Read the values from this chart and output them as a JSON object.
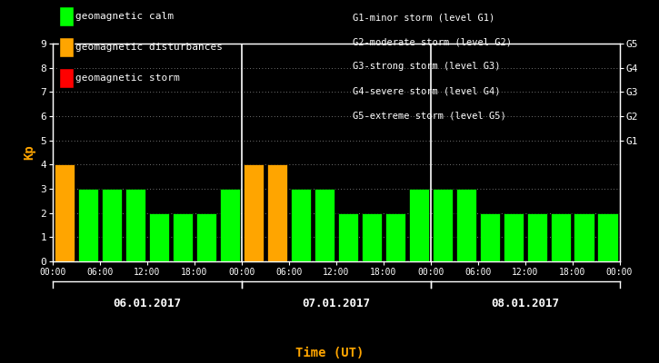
{
  "bg_color": "#000000",
  "bar_values": [
    4,
    3,
    3,
    3,
    2,
    2,
    2,
    3,
    4,
    4,
    3,
    3,
    2,
    2,
    2,
    3,
    3,
    3,
    2,
    2,
    2,
    2,
    2,
    2
  ],
  "bar_colors": [
    "#FFA500",
    "#00FF00",
    "#00FF00",
    "#00FF00",
    "#00FF00",
    "#00FF00",
    "#00FF00",
    "#00FF00",
    "#FFA500",
    "#FFA500",
    "#00FF00",
    "#00FF00",
    "#00FF00",
    "#00FF00",
    "#00FF00",
    "#00FF00",
    "#00FF00",
    "#00FF00",
    "#00FF00",
    "#00FF00",
    "#00FF00",
    "#00FF00",
    "#00FF00",
    "#00FF00"
  ],
  "ylim": [
    0,
    9
  ],
  "yticks": [
    0,
    1,
    2,
    3,
    4,
    5,
    6,
    7,
    8,
    9
  ],
  "ylabel": "Kp",
  "ylabel_color": "#FFA500",
  "xlabel": "Time (UT)",
  "xlabel_color": "#FFA500",
  "tick_color": "#FFFFFF",
  "axis_color": "#FFFFFF",
  "grid_color": "#FFFFFF",
  "day_labels": [
    "06.01.2017",
    "07.01.2017",
    "08.01.2017"
  ],
  "day_label_color": "#FFFFFF",
  "right_ytick_labels": [
    "G1",
    "G2",
    "G3",
    "G4",
    "G5"
  ],
  "right_ytick_positions": [
    5,
    6,
    7,
    8,
    9
  ],
  "right_tick_color": "#FFFFFF",
  "legend_items": [
    {
      "label": "geomagnetic calm",
      "color": "#00FF00"
    },
    {
      "label": "geomagnetic disturbances",
      "color": "#FFA500"
    },
    {
      "label": "geomagnetic storm",
      "color": "#FF0000"
    }
  ],
  "legend_text_color": "#FFFFFF",
  "storm_legend_lines": [
    "G1-minor storm (level G1)",
    "G2-moderate storm (level G2)",
    "G3-strong storm (level G3)",
    "G4-severe storm (level G4)",
    "G5-extreme storm (level G5)"
  ],
  "storm_legend_color": "#FFFFFF",
  "separator_bar_indices": [
    8,
    16
  ],
  "separator_color": "#FFFFFF",
  "font_family": "monospace",
  "bar_width": 0.85
}
